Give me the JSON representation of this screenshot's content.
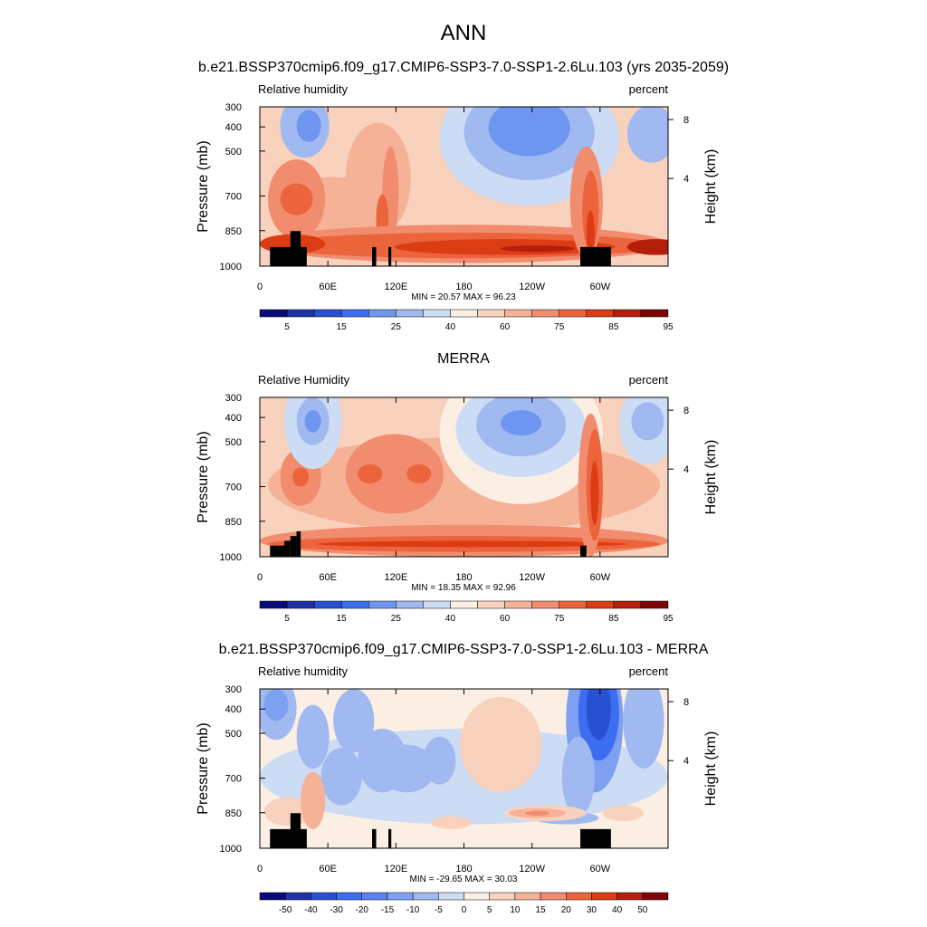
{
  "figure_title": "ANN",
  "chart_data": [
    {
      "type": "heatmap",
      "title": "b.e21.BSSP370cmip6.f09_g17.CMIP6-SSP3-7.0-SSP1-2.6Lu.103 (yrs 2035-2059)",
      "left_label": "Relative humidity",
      "right_label": "percent",
      "ylabel": "Pressure (mb)",
      "ylabel_right": "Height (km)",
      "y_ticks": [
        "300",
        "400",
        "500",
        "700",
        "850",
        "1000"
      ],
      "y_right_ticks": [
        "8",
        "4"
      ],
      "x_ticks": [
        "0",
        "60E",
        "120E",
        "180",
        "120W",
        "60W"
      ],
      "stats": "MIN =  20.57  MAX =  96.23",
      "colorbar_labels": [
        "5",
        "15",
        "25",
        "40",
        "60",
        "75",
        "85",
        "95"
      ],
      "colors": [
        "#0a0a7a",
        "#1e32a6",
        "#2850d2",
        "#3c6ef0",
        "#6e96f0",
        "#a0b9f0",
        "#cddcf5",
        "#fbefe4",
        "#f8d2bd",
        "#f5b297",
        "#f18c6e",
        "#eb643c",
        "#dc3c14",
        "#b41e0a",
        "#7d0505"
      ]
    },
    {
      "type": "heatmap",
      "title": "MERRA",
      "left_label": "Relative Humidity",
      "right_label": "percent",
      "ylabel": "Pressure (mb)",
      "ylabel_right": "Height (km)",
      "y_ticks": [
        "300",
        "400",
        "500",
        "700",
        "850",
        "1000"
      ],
      "y_right_ticks": [
        "8",
        "4"
      ],
      "x_ticks": [
        "0",
        "60E",
        "120E",
        "180",
        "120W",
        "60W"
      ],
      "stats": "MIN =  18.35  MAX =  92.96",
      "colorbar_labels": [
        "5",
        "15",
        "25",
        "40",
        "60",
        "75",
        "85",
        "95"
      ],
      "colors": [
        "#0a0a7a",
        "#1e32a6",
        "#2850d2",
        "#3c6ef0",
        "#6e96f0",
        "#a0b9f0",
        "#cddcf5",
        "#fbefe4",
        "#f8d2bd",
        "#f5b297",
        "#f18c6e",
        "#eb643c",
        "#dc3c14",
        "#b41e0a",
        "#7d0505"
      ]
    },
    {
      "type": "heatmap",
      "title": "b.e21.BSSP370cmip6.f09_g17.CMIP6-SSP3-7.0-SSP1-2.6Lu.103 - MERRA",
      "left_label": "Relative humidity",
      "right_label": "percent",
      "ylabel": "Pressure (mb)",
      "ylabel_right": "Height (km)",
      "y_ticks": [
        "300",
        "400",
        "500",
        "700",
        "850",
        "1000"
      ],
      "y_right_ticks": [
        "8",
        "4"
      ],
      "x_ticks": [
        "0",
        "60E",
        "120E",
        "180",
        "120W",
        "60W"
      ],
      "stats": "MIN = -29.65  MAX =  30.03",
      "colorbar_labels": [
        "-50",
        "-40",
        "-30",
        "-20",
        "-15",
        "-10",
        "-5",
        "0",
        "5",
        "10",
        "15",
        "20",
        "30",
        "40",
        "50"
      ],
      "colors": [
        "#0a0a7a",
        "#1e32a6",
        "#2850d2",
        "#3c6ef0",
        "#5a82f0",
        "#7ea0f0",
        "#a0b9f0",
        "#cddcf5",
        "#fbefe4",
        "#f8d2bd",
        "#f5b297",
        "#f18c6e",
        "#eb643c",
        "#dc3c14",
        "#b41e0a",
        "#7d0505"
      ]
    }
  ]
}
